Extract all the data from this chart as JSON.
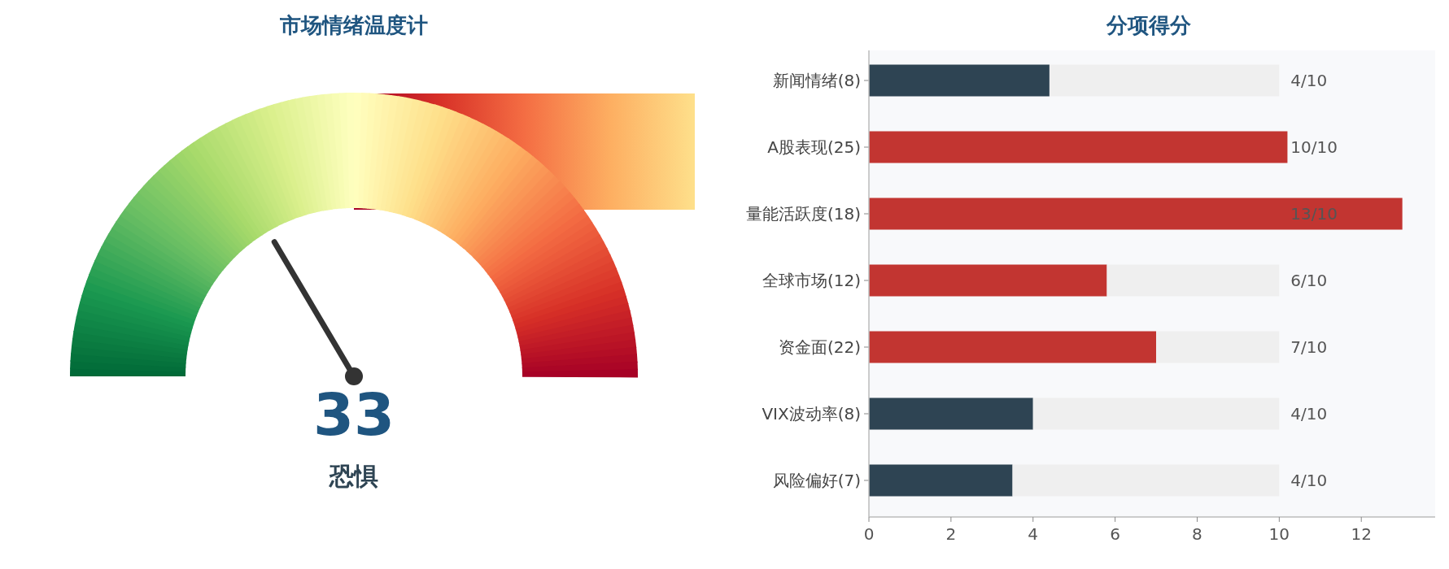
{
  "chart_data": [
    {
      "type": "other",
      "title": "市场情绪温度计",
      "annotations": [
        "33",
        "恐惧"
      ]
    },
    {
      "type": "bar",
      "orientation": "horizontal",
      "stacked": true,
      "title": "分项得分",
      "categories": [
        "新闻情绪(8)",
        "A股表现(25)",
        "量能活跃度(18)",
        "全球市场(12)",
        "资金面(22)",
        "VIX波动率(8)",
        "风险偏好(7)"
      ],
      "series": [
        {
          "colors": [
            "#2e4453",
            "#c23531",
            "#c23531",
            "#c23531",
            "#c23531",
            "#2e4453",
            "#2e4453"
          ],
          "values": [
            4.4,
            10.2,
            13,
            5.8,
            7,
            4,
            3.5
          ]
        },
        {
          "color": "#efefef",
          "values": [
            5.6,
            null,
            null,
            4.2,
            3,
            6,
            6.5
          ]
        }
      ],
      "annotations": [
        "4/10",
        "10/10",
        "13/10",
        "6/10",
        "7/10",
        "4/10",
        "4/10"
      ],
      "xlim": [
        0,
        13.8
      ],
      "xticks": [
        0,
        2,
        4,
        6,
        8,
        10,
        12
      ],
      "grid": false
    }
  ]
}
